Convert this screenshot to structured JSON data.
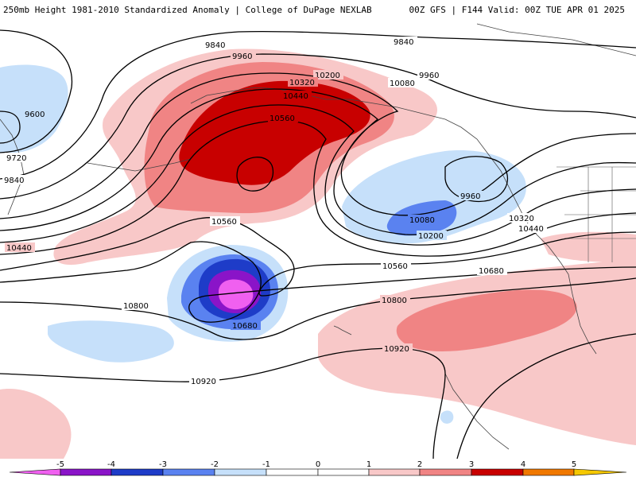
{
  "header": {
    "left": "250mb Height 1981-2010 Standardized Anomaly | College of DuPage NEXLAB",
    "right": "00Z GFS | F144 Valid: 00Z TUE APR 01 2025"
  },
  "colors": {
    "anom_neg5": "#f060f0",
    "anom_neg4": "#8a14c8",
    "anom_neg3": "#1e3cc8",
    "anom_neg2": "#5a82f0",
    "anom_neg1": "#c6e0fa",
    "anom_pos1": "#f8c8c8",
    "anom_pos2": "#f08484",
    "anom_pos3": "#c80000",
    "anom_pos4": "#f07800",
    "anom_pos5": "#f5c800",
    "contour": "#000000",
    "coastline": "#444444"
  },
  "colorbar": {
    "ticks": [
      "-5",
      "-4",
      "-3",
      "-2",
      "-1",
      "0",
      "1",
      "2",
      "3",
      "4",
      "5"
    ],
    "colors": [
      "#f060f0",
      "#8a14c8",
      "#1e3cc8",
      "#5a82f0",
      "#c6e0fa",
      "#ffffff",
      "#ffffff",
      "#f8c8c8",
      "#f08484",
      "#c80000",
      "#f07800",
      "#f5c800"
    ]
  },
  "contour_labels": [
    "9600",
    "9720",
    "9840",
    "9840",
    "9840",
    "9960",
    "9960",
    "9960",
    "10080",
    "10080",
    "10200",
    "10200",
    "10320",
    "10320",
    "10440",
    "10440",
    "10440",
    "10560",
    "10560",
    "10560",
    "10680",
    "10680",
    "10800",
    "10800",
    "10920",
    "10920"
  ],
  "map_features": {
    "region": "North Pacific / Alaska / Western North America",
    "low_center_icon": "upper-low",
    "ridge_center_icon": "upper-ridge"
  }
}
